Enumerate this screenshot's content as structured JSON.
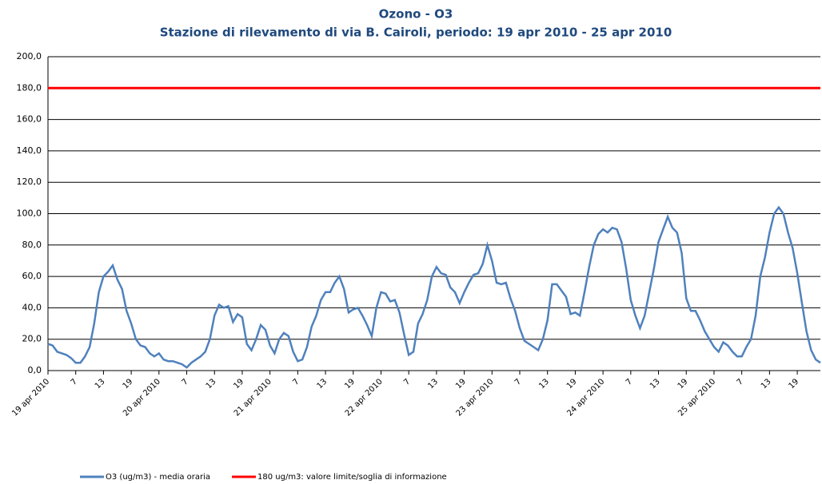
{
  "chart_data": {
    "type": "line",
    "title": "Ozono - O3",
    "subtitle": "Stazione di rilevamento di via B. Cairoli, periodo: 19 apr 2010 - 25 apr 2010",
    "categories": [
      "19 apr 2010",
      null,
      null,
      null,
      null,
      null,
      "7",
      null,
      null,
      null,
      null,
      null,
      "13",
      null,
      null,
      null,
      null,
      null,
      "19",
      null,
      null,
      null,
      null,
      null,
      "20 apr 2010",
      null,
      null,
      null,
      null,
      null,
      "7",
      null,
      null,
      null,
      null,
      null,
      "13",
      null,
      null,
      null,
      null,
      null,
      "19",
      null,
      null,
      null,
      null,
      null,
      "21 apr 2010",
      null,
      null,
      null,
      null,
      null,
      "7",
      null,
      null,
      null,
      null,
      null,
      "13",
      null,
      null,
      null,
      null,
      null,
      "19",
      null,
      null,
      null,
      null,
      null,
      "22 apr 2010",
      null,
      null,
      null,
      null,
      null,
      "7",
      null,
      null,
      null,
      null,
      null,
      "13",
      null,
      null,
      null,
      null,
      null,
      "19",
      null,
      null,
      null,
      null,
      null,
      "23 apr 2010",
      null,
      null,
      null,
      null,
      null,
      "7",
      null,
      null,
      null,
      null,
      null,
      "13",
      null,
      null,
      null,
      null,
      null,
      "19",
      null,
      null,
      null,
      null,
      null,
      "24 apr 2010",
      null,
      null,
      null,
      null,
      null,
      "7",
      null,
      null,
      null,
      null,
      null,
      "13",
      null,
      null,
      null,
      null,
      null,
      "19",
      null,
      null,
      null,
      null,
      null,
      "25 apr 2010",
      null,
      null,
      null,
      null,
      null,
      "7",
      null,
      null,
      null,
      null,
      null,
      "13",
      null,
      null,
      null,
      null,
      null,
      "19",
      null,
      null,
      null,
      null,
      null
    ],
    "series": [
      {
        "name": "O3 (ug/m3)  - media oraria",
        "color": "#4f81bd",
        "values": [
          17,
          16,
          12,
          11,
          10,
          8,
          5,
          5,
          9,
          15,
          30,
          50,
          60,
          63,
          67,
          58,
          52,
          38,
          30,
          20,
          16,
          15,
          11,
          9,
          11,
          7,
          6,
          6,
          5,
          4,
          2,
          5,
          7,
          9,
          12,
          20,
          35,
          42,
          40,
          41,
          31,
          36,
          34,
          17,
          13,
          20,
          29,
          26,
          16,
          11,
          20,
          24,
          22,
          12,
          6,
          7,
          15,
          28,
          35,
          45,
          50,
          50,
          56,
          60,
          52,
          37,
          39,
          40,
          35,
          29,
          22,
          40,
          50,
          49,
          44,
          45,
          37,
          23,
          10,
          12,
          30,
          36,
          45,
          60,
          66,
          62,
          61,
          53,
          50,
          43,
          50,
          56,
          61,
          62,
          68,
          80,
          70,
          56,
          55,
          56,
          46,
          38,
          27,
          19,
          17,
          15,
          13,
          20,
          32,
          55,
          55,
          51,
          47,
          36,
          37,
          35,
          50,
          66,
          80,
          87,
          90,
          88,
          91,
          90,
          82,
          65,
          45,
          35,
          27,
          35,
          50,
          65,
          82,
          90,
          98,
          91,
          88,
          75,
          46,
          38,
          38,
          32,
          25,
          20,
          15,
          12,
          18,
          16,
          12,
          9,
          9,
          15,
          20,
          35,
          60,
          72,
          88,
          100,
          104,
          100,
          88,
          78,
          62,
          43,
          25,
          13,
          7,
          5
        ]
      }
    ],
    "threshold": {
      "name": "180 ug/m3: valore limite/soglia di informazione",
      "value": 180,
      "color": "#ff0000"
    },
    "ylim": [
      0,
      200
    ],
    "yticks": [
      {
        "value": 0,
        "label": "0,0"
      },
      {
        "value": 20,
        "label": "20,0"
      },
      {
        "value": 40,
        "label": "40,0"
      },
      {
        "value": 60,
        "label": "60,0"
      },
      {
        "value": 80,
        "label": "80,0"
      },
      {
        "value": 100,
        "label": "100,0"
      },
      {
        "value": 120,
        "label": "120,0"
      },
      {
        "value": 140,
        "label": "140,0"
      },
      {
        "value": 160,
        "label": "160,0"
      },
      {
        "value": 180,
        "label": "180,0"
      },
      {
        "value": 200,
        "label": "200,0"
      }
    ],
    "grid": true
  }
}
